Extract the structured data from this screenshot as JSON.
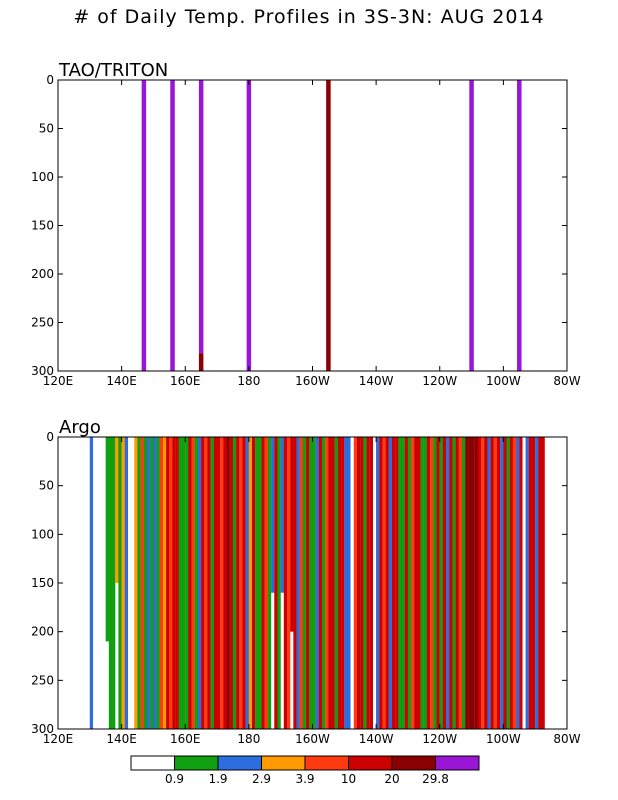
{
  "title": "# of Daily Temp. Profiles in 3S-3N: AUG 2014",
  "chart_data": [
    {
      "type": "heatmap",
      "panel_title": "TAO/TRITON",
      "xlabel": "",
      "ylabel": "",
      "xlim": [
        120,
        280
      ],
      "ylim": [
        300,
        0
      ],
      "x_ticks": [
        "120E",
        "140E",
        "160E",
        "180",
        "160W",
        "140W",
        "120W",
        "100W",
        "80W"
      ],
      "y_ticks": [
        "0",
        "50",
        "100",
        "150",
        "200",
        "250",
        "300"
      ],
      "profiles": [
        {
          "lon": 147,
          "class": 7
        },
        {
          "lon": 156,
          "class": 7
        },
        {
          "lon": 165,
          "class": 7,
          "bottom_class": 6,
          "bottom_from": 282
        },
        {
          "lon": 180,
          "class": 7
        },
        {
          "lon": 205,
          "class": 6
        },
        {
          "lon": 250,
          "class": 7
        },
        {
          "lon": 265,
          "class": 7
        }
      ]
    },
    {
      "type": "heatmap",
      "panel_title": "Argo",
      "xlabel": "",
      "ylabel": "",
      "xlim": [
        120,
        280
      ],
      "ylim": [
        300,
        0
      ],
      "x_ticks": [
        "120E",
        "140E",
        "160E",
        "180",
        "160W",
        "140W",
        "120W",
        "100W",
        "80W"
      ],
      "y_ticks": [
        "0",
        "50",
        "100",
        "150",
        "200",
        "250",
        "300"
      ],
      "profiles": [
        {
          "lon": 130.5,
          "class": 2
        },
        {
          "lon": 135.5,
          "class": 1,
          "depth": 210
        },
        {
          "lon": 136.5,
          "class": 1
        },
        {
          "lon": 137.5,
          "class": 1
        },
        {
          "lon": 138.5,
          "class": 3,
          "depth": 150
        },
        {
          "lon": 139.5,
          "class": 1
        },
        {
          "lon": 140.5,
          "class": 3
        },
        {
          "lon": 141.5,
          "class": 2
        },
        {
          "lon": 144.5,
          "class": 3
        },
        {
          "lon": 145.5,
          "class": 1
        },
        {
          "lon": 146.5,
          "class": 4
        },
        {
          "lon": 147.5,
          "class": 1
        },
        {
          "lon": 148.5,
          "class": 2
        },
        {
          "lon": 149.5,
          "class": 1
        },
        {
          "lon": 150.5,
          "class": 2
        },
        {
          "lon": 151.5,
          "class": 1
        },
        {
          "lon": 152.5,
          "class": 4
        },
        {
          "lon": 153.5,
          "class": 3
        },
        {
          "lon": 154.5,
          "class": 5
        },
        {
          "lon": 155.5,
          "class": 4
        },
        {
          "lon": 156.5,
          "class": 5
        },
        {
          "lon": 157.5,
          "class": 5
        },
        {
          "lon": 158.5,
          "class": 1
        },
        {
          "lon": 159.5,
          "class": 1
        },
        {
          "lon": 160.5,
          "class": 1
        },
        {
          "lon": 161.5,
          "class": 5
        },
        {
          "lon": 162.5,
          "class": 4
        },
        {
          "lon": 163.5,
          "class": 1
        },
        {
          "lon": 164.5,
          "class": 2
        },
        {
          "lon": 165.5,
          "class": 5
        },
        {
          "lon": 166.5,
          "class": 4
        },
        {
          "lon": 167.5,
          "class": 5
        },
        {
          "lon": 168.5,
          "class": 1
        },
        {
          "lon": 169.5,
          "class": 5
        },
        {
          "lon": 170.5,
          "class": 5
        },
        {
          "lon": 171.5,
          "class": 4
        },
        {
          "lon": 172.5,
          "class": 5
        },
        {
          "lon": 173.5,
          "class": 6
        },
        {
          "lon": 174.5,
          "class": 5
        },
        {
          "lon": 175.5,
          "class": 1
        },
        {
          "lon": 176.5,
          "class": 5
        },
        {
          "lon": 177.5,
          "class": 4
        },
        {
          "lon": 178.5,
          "class": 5
        },
        {
          "lon": 179.5,
          "class": 2
        },
        {
          "lon": 180.5,
          "class": 3
        },
        {
          "lon": 181.5,
          "class": 5
        },
        {
          "lon": 182.5,
          "class": 1
        },
        {
          "lon": 183.5,
          "class": 1
        },
        {
          "lon": 184.5,
          "class": 5
        },
        {
          "lon": 185.5,
          "class": 4
        },
        {
          "lon": 186.5,
          "class": 1
        },
        {
          "lon": 187.5,
          "class": 2,
          "gap_from": 160
        },
        {
          "lon": 188.5,
          "class": 5
        },
        {
          "lon": 189.5,
          "class": 1
        },
        {
          "lon": 190.5,
          "class": 2,
          "gap_from": 160
        },
        {
          "lon": 191.5,
          "class": 5
        },
        {
          "lon": 192.5,
          "class": 4
        },
        {
          "lon": 193.5,
          "class": 5,
          "depth": 200
        },
        {
          "lon": 194.5,
          "class": 5
        },
        {
          "lon": 195.5,
          "class": 2
        },
        {
          "lon": 196.5,
          "class": 4
        },
        {
          "lon": 197.5,
          "class": 1
        },
        {
          "lon": 198.5,
          "class": 5
        },
        {
          "lon": 199.5,
          "class": 1
        },
        {
          "lon": 200.5,
          "class": 1
        },
        {
          "lon": 201.5,
          "class": 2
        },
        {
          "lon": 202.5,
          "class": 5
        },
        {
          "lon": 203.5,
          "class": 1
        },
        {
          "lon": 204.5,
          "class": 4
        },
        {
          "lon": 205.5,
          "class": 5
        },
        {
          "lon": 206.5,
          "class": 5
        },
        {
          "lon": 207.5,
          "class": 1
        },
        {
          "lon": 208.5,
          "class": 5
        },
        {
          "lon": 209.5,
          "class": 5
        },
        {
          "lon": 210.5,
          "class": 2
        },
        {
          "lon": 211.5,
          "class": 2
        },
        {
          "lon": 212.5,
          "class": 0
        },
        {
          "lon": 213.5,
          "class": 4
        },
        {
          "lon": 214.5,
          "class": 5
        },
        {
          "lon": 215.5,
          "class": 5
        },
        {
          "lon": 216.5,
          "class": 1
        },
        {
          "lon": 217.5,
          "class": 5
        },
        {
          "lon": 218.5,
          "class": 5
        },
        {
          "lon": 220.5,
          "class": 2
        },
        {
          "lon": 221.5,
          "class": 5
        },
        {
          "lon": 222.5,
          "class": 4
        },
        {
          "lon": 223.5,
          "class": 5
        },
        {
          "lon": 224.5,
          "class": 2
        },
        {
          "lon": 225.5,
          "class": 5
        },
        {
          "lon": 226.5,
          "class": 5
        },
        {
          "lon": 227.5,
          "class": 1
        },
        {
          "lon": 228.5,
          "class": 1
        },
        {
          "lon": 229.5,
          "class": 5
        },
        {
          "lon": 230.5,
          "class": 1
        },
        {
          "lon": 231.5,
          "class": 4
        },
        {
          "lon": 232.5,
          "class": 5
        },
        {
          "lon": 233.5,
          "class": 5
        },
        {
          "lon": 234.5,
          "class": 1
        },
        {
          "lon": 235.5,
          "class": 1
        },
        {
          "lon": 236.5,
          "class": 5
        },
        {
          "lon": 237.5,
          "class": 4
        },
        {
          "lon": 238.5,
          "class": 1
        },
        {
          "lon": 239.5,
          "class": 5
        },
        {
          "lon": 240.5,
          "class": 1
        },
        {
          "lon": 241.5,
          "class": 5
        },
        {
          "lon": 242.5,
          "class": 2
        },
        {
          "lon": 243.5,
          "class": 5
        },
        {
          "lon": 244.5,
          "class": 1
        },
        {
          "lon": 245.5,
          "class": 5
        },
        {
          "lon": 246.5,
          "class": 4
        },
        {
          "lon": 247.5,
          "class": 1
        },
        {
          "lon": 248.5,
          "class": 6
        },
        {
          "lon": 249.5,
          "class": 6
        },
        {
          "lon": 250.5,
          "class": 6
        },
        {
          "lon": 251.5,
          "class": 6
        },
        {
          "lon": 252.5,
          "class": 5
        },
        {
          "lon": 253.5,
          "class": 4
        },
        {
          "lon": 254.5,
          "class": 5
        },
        {
          "lon": 255.5,
          "class": 2
        },
        {
          "lon": 256.5,
          "class": 5
        },
        {
          "lon": 257.5,
          "class": 4
        },
        {
          "lon": 258.5,
          "class": 5
        },
        {
          "lon": 259.5,
          "class": 2
        },
        {
          "lon": 260.5,
          "class": 5
        },
        {
          "lon": 261.5,
          "class": 1
        },
        {
          "lon": 262.5,
          "class": 5
        },
        {
          "lon": 263.5,
          "class": 4
        },
        {
          "lon": 264.5,
          "class": 2
        },
        {
          "lon": 265.5,
          "class": 5
        },
        {
          "lon": 267.5,
          "class": 2
        },
        {
          "lon": 268.5,
          "class": 5
        },
        {
          "lon": 269.5,
          "class": 5
        },
        {
          "lon": 270.5,
          "class": 2
        },
        {
          "lon": 271.5,
          "class": 5
        },
        {
          "lon": 272.5,
          "class": 5
        }
      ]
    }
  ],
  "colorbar": {
    "classes": [
      {
        "color": "#ffffff"
      },
      {
        "color": "#109f10"
      },
      {
        "color": "#2d6ddd"
      },
      {
        "color": "#ff9a00"
      },
      {
        "color": "#ff3a10"
      },
      {
        "color": "#cc0000"
      },
      {
        "color": "#8b0000"
      },
      {
        "color": "#9a16d6"
      }
    ],
    "boundaries": [
      "0.9",
      "1.9",
      "2.9",
      "3.9",
      "10",
      "20",
      "29.8"
    ]
  }
}
